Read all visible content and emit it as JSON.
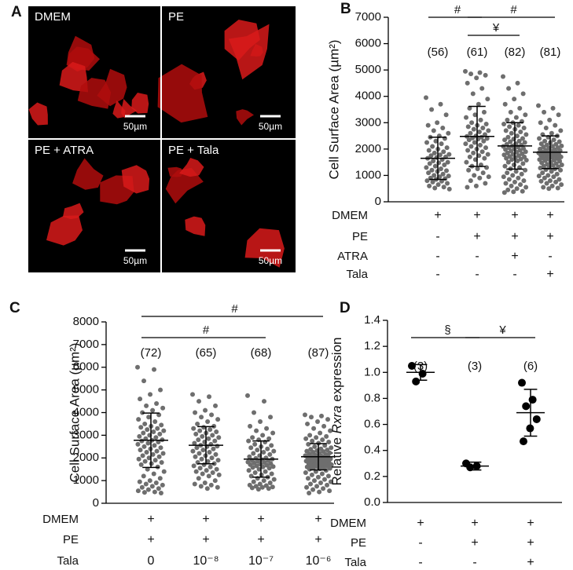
{
  "panel_a": {
    "letter": "A",
    "images": [
      {
        "label": "DMEM",
        "scale": "50µm"
      },
      {
        "label": "PE",
        "scale": "50µm"
      },
      {
        "label": "PE + ATRA",
        "scale": "50µm"
      },
      {
        "label": "PE + Tala",
        "scale": "50µm"
      }
    ]
  },
  "chart_data": [
    {
      "type": "dotplot",
      "panel": "B",
      "ylabel": "Cell Surface Area (µm²)",
      "color": "#6e6e6e",
      "ylim": [
        0,
        7000
      ],
      "yticks": [
        0,
        1000,
        2000,
        3000,
        4000,
        5000,
        6000,
        7000
      ],
      "groups": [
        {
          "n": "(56)",
          "mean": 1650,
          "sd": 800,
          "values": [
            3950,
            3700,
            3500,
            3300,
            3000,
            2900,
            2800,
            2700,
            2600,
            2500,
            2450,
            2400,
            2300,
            2250,
            2200,
            2100,
            2050,
            2000,
            1950,
            1900,
            1850,
            1800,
            1780,
            1750,
            1700,
            1680,
            1650,
            1600,
            1550,
            1500,
            1480,
            1450,
            1400,
            1350,
            1300,
            1250,
            1200,
            1180,
            1150,
            1100,
            1050,
            1000,
            980,
            950,
            900,
            880,
            850,
            800,
            780,
            750,
            700,
            650,
            600,
            560,
            520,
            480
          ]
        },
        {
          "n": "(61)",
          "mean": 2480,
          "sd": 1140,
          "values": [
            4950,
            4900,
            4850,
            4800,
            4700,
            4500,
            4300,
            4100,
            3900,
            3700,
            3550,
            3400,
            3300,
            3200,
            3100,
            3000,
            2950,
            2900,
            2850,
            2800,
            2750,
            2700,
            2650,
            2600,
            2550,
            2500,
            2480,
            2450,
            2420,
            2400,
            2380,
            2350,
            2300,
            2250,
            2200,
            2150,
            2100,
            2050,
            2000,
            1950,
            1900,
            1850,
            1800,
            1750,
            1700,
            1650,
            1600,
            1500,
            1400,
            1350,
            1300,
            1250,
            1200,
            1100,
            1000,
            950,
            900,
            800,
            700,
            600,
            550
          ]
        },
        {
          "n": "(82)",
          "mean": 2120,
          "sd": 880,
          "values": [
            4750,
            4500,
            4300,
            4100,
            3900,
            3700,
            3550,
            3400,
            3300,
            3200,
            3100,
            3050,
            3000,
            2950,
            2900,
            2850,
            2800,
            2750,
            2700,
            2650,
            2600,
            2550,
            2500,
            2450,
            2400,
            2380,
            2350,
            2300,
            2280,
            2250,
            2200,
            2180,
            2150,
            2120,
            2100,
            2080,
            2050,
            2020,
            2000,
            1980,
            1950,
            1920,
            1900,
            1880,
            1850,
            1820,
            1800,
            1780,
            1750,
            1720,
            1700,
            1680,
            1650,
            1620,
            1600,
            1580,
            1550,
            1500,
            1450,
            1400,
            1350,
            1300,
            1250,
            1200,
            1150,
            1100,
            1050,
            1000,
            950,
            900,
            850,
            800,
            750,
            700,
            650,
            600,
            550,
            500,
            450,
            400,
            380,
            350
          ]
        },
        {
          "n": "(81)",
          "mean": 1880,
          "sd": 620,
          "values": [
            3650,
            3550,
            3400,
            3300,
            3100,
            3000,
            2900,
            2800,
            2700,
            2600,
            2550,
            2500,
            2450,
            2400,
            2350,
            2300,
            2280,
            2250,
            2200,
            2180,
            2150,
            2120,
            2100,
            2080,
            2050,
            2030,
            2000,
            1980,
            1960,
            1940,
            1920,
            1900,
            1880,
            1860,
            1850,
            1840,
            1820,
            1800,
            1780,
            1760,
            1740,
            1720,
            1700,
            1680,
            1660,
            1640,
            1620,
            1600,
            1580,
            1560,
            1540,
            1500,
            1480,
            1450,
            1420,
            1400,
            1380,
            1350,
            1320,
            1300,
            1280,
            1250,
            1220,
            1200,
            1150,
            1100,
            1050,
            1000,
            980,
            950,
            900,
            850,
            800,
            780,
            750,
            700,
            650,
            600,
            550,
            520,
            500
          ]
        }
      ],
      "brackets": [
        {
          "text": "#",
          "groups": [
            0,
            1
          ]
        },
        {
          "text": "#",
          "groups": [
            1,
            3
          ]
        },
        {
          "text": "¥",
          "groups": [
            1,
            2
          ]
        }
      ],
      "conditions": [
        {
          "label": "DMEM",
          "marks": [
            "+",
            "+",
            "+",
            "+"
          ]
        },
        {
          "label": "PE",
          "marks": [
            "-",
            "+",
            "+",
            "+"
          ]
        },
        {
          "label": "ATRA",
          "marks": [
            "-",
            "-",
            "+",
            "-"
          ]
        },
        {
          "label": "Tala",
          "marks": [
            "-",
            "-",
            "-",
            "+"
          ]
        }
      ]
    },
    {
      "type": "dotplot",
      "panel": "C",
      "ylabel": "Cell Surface Area (µm²)",
      "color": "#6e6e6e",
      "ylim": [
        0,
        8000
      ],
      "yticks": [
        0,
        1000,
        2000,
        3000,
        4000,
        5000,
        6000,
        7000,
        8000
      ],
      "groups": [
        {
          "n": "(72)",
          "mean": 2780,
          "sd": 1200,
          "values": [
            6000,
            5900,
            5400,
            5000,
            4800,
            4600,
            4400,
            4300,
            4200,
            4100,
            4000,
            3900,
            3800,
            3700,
            3600,
            3500,
            3450,
            3400,
            3350,
            3300,
            3250,
            3200,
            3150,
            3100,
            3050,
            3000,
            2950,
            2900,
            2850,
            2800,
            2780,
            2750,
            2700,
            2650,
            2600,
            2550,
            2500,
            2450,
            2400,
            2350,
            2300,
            2250,
            2200,
            2150,
            2100,
            2050,
            2000,
            1950,
            1900,
            1850,
            1800,
            1750,
            1700,
            1600,
            1500,
            1400,
            1300,
            1200,
            1100,
            1000,
            950,
            900,
            850,
            800,
            750,
            700,
            650,
            600,
            550,
            500,
            480,
            450
          ]
        },
        {
          "n": "(65)",
          "mean": 2560,
          "sd": 820,
          "values": [
            4800,
            4700,
            4500,
            4300,
            4100,
            4000,
            3900,
            3800,
            3700,
            3600,
            3500,
            3400,
            3350,
            3300,
            3250,
            3200,
            3150,
            3100,
            3050,
            3000,
            2950,
            2900,
            2850,
            2800,
            2750,
            2700,
            2650,
            2600,
            2560,
            2520,
            2500,
            2450,
            2400,
            2350,
            2300,
            2250,
            2200,
            2150,
            2100,
            2050,
            2000,
            1950,
            1900,
            1850,
            1800,
            1750,
            1700,
            1650,
            1600,
            1550,
            1500,
            1450,
            1400,
            1350,
            1300,
            1250,
            1200,
            1100,
            1000,
            900,
            850,
            800,
            750,
            700,
            650
          ]
        },
        {
          "n": "(68)",
          "mean": 1950,
          "sd": 800,
          "values": [
            4750,
            4500,
            4000,
            3800,
            3600,
            3400,
            3300,
            3200,
            3100,
            3000,
            2900,
            2850,
            2800,
            2750,
            2700,
            2600,
            2550,
            2500,
            2450,
            2400,
            2350,
            2300,
            2250,
            2200,
            2150,
            2100,
            2050,
            2000,
            1980,
            1950,
            1920,
            1900,
            1880,
            1850,
            1820,
            1800,
            1780,
            1750,
            1720,
            1700,
            1680,
            1650,
            1620,
            1600,
            1580,
            1550,
            1500,
            1450,
            1400,
            1350,
            1300,
            1250,
            1200,
            1150,
            1100,
            1050,
            1000,
            950,
            900,
            850,
            800,
            780,
            750,
            720,
            700,
            680,
            650,
            620
          ]
        },
        {
          "n": "(87)",
          "mean": 2050,
          "sd": 580,
          "values": [
            3900,
            3850,
            3800,
            3700,
            3600,
            3500,
            3400,
            3300,
            3200,
            3100,
            3000,
            2950,
            2900,
            2850,
            2800,
            2750,
            2700,
            2650,
            2600,
            2550,
            2500,
            2450,
            2400,
            2380,
            2350,
            2320,
            2300,
            2280,
            2250,
            2220,
            2200,
            2180,
            2150,
            2120,
            2100,
            2080,
            2060,
            2050,
            2040,
            2020,
            2000,
            1980,
            1960,
            1940,
            1920,
            1900,
            1880,
            1860,
            1840,
            1820,
            1800,
            1780,
            1760,
            1740,
            1720,
            1700,
            1680,
            1660,
            1640,
            1620,
            1600,
            1580,
            1560,
            1540,
            1520,
            1500,
            1450,
            1400,
            1350,
            1300,
            1250,
            1200,
            1150,
            1100,
            1050,
            1000,
            950,
            900,
            850,
            800,
            750,
            700,
            650,
            600,
            550,
            500,
            450
          ]
        }
      ],
      "brackets": [
        {
          "text": "#",
          "groups": [
            0,
            3
          ]
        },
        {
          "text": "#",
          "groups": [
            0,
            2
          ]
        }
      ],
      "conditions": [
        {
          "label": "DMEM",
          "marks": [
            "+",
            "+",
            "+",
            "+"
          ]
        },
        {
          "label": "PE",
          "marks": [
            "+",
            "+",
            "+",
            "+"
          ]
        },
        {
          "label": "Tala",
          "marks": [
            "0",
            "10⁻⁸",
            "10⁻⁷",
            "10⁻⁶"
          ]
        }
      ]
    },
    {
      "type": "dotplot",
      "panel": "D",
      "ylabel": [
        "Relative ",
        "Rxra",
        " expression"
      ],
      "color": "#000000",
      "ylim": [
        0,
        1.4
      ],
      "yticks": [
        {
          "value": 0,
          "label": "0.0"
        },
        0.2,
        0.4,
        0.6,
        0.8,
        {
          "value": 1,
          "label": "1.0"
        },
        1.2,
        1.4
      ],
      "groups": [
        {
          "n": "(3)",
          "mean": 1.0,
          "sd": 0.06,
          "values": [
            1.05,
            0.99,
            0.93
          ]
        },
        {
          "n": "(3)",
          "mean": 0.28,
          "sd": 0.03,
          "values": [
            0.3,
            0.28,
            0.27
          ]
        },
        {
          "n": "(6)",
          "mean": 0.69,
          "sd": 0.18,
          "values": [
            0.92,
            0.79,
            0.74,
            0.64,
            0.57,
            0.47
          ]
        }
      ],
      "brackets": [
        {
          "text": "§",
          "groups": [
            0,
            1
          ]
        },
        {
          "text": "¥",
          "groups": [
            1,
            2
          ]
        }
      ],
      "conditions": [
        {
          "label": "DMEM",
          "marks": [
            "+",
            "+",
            "+"
          ]
        },
        {
          "label": "PE",
          "marks": [
            "-",
            "+",
            "+"
          ]
        },
        {
          "label": "Tala",
          "marks": [
            "-",
            "-",
            "+"
          ]
        }
      ]
    }
  ]
}
